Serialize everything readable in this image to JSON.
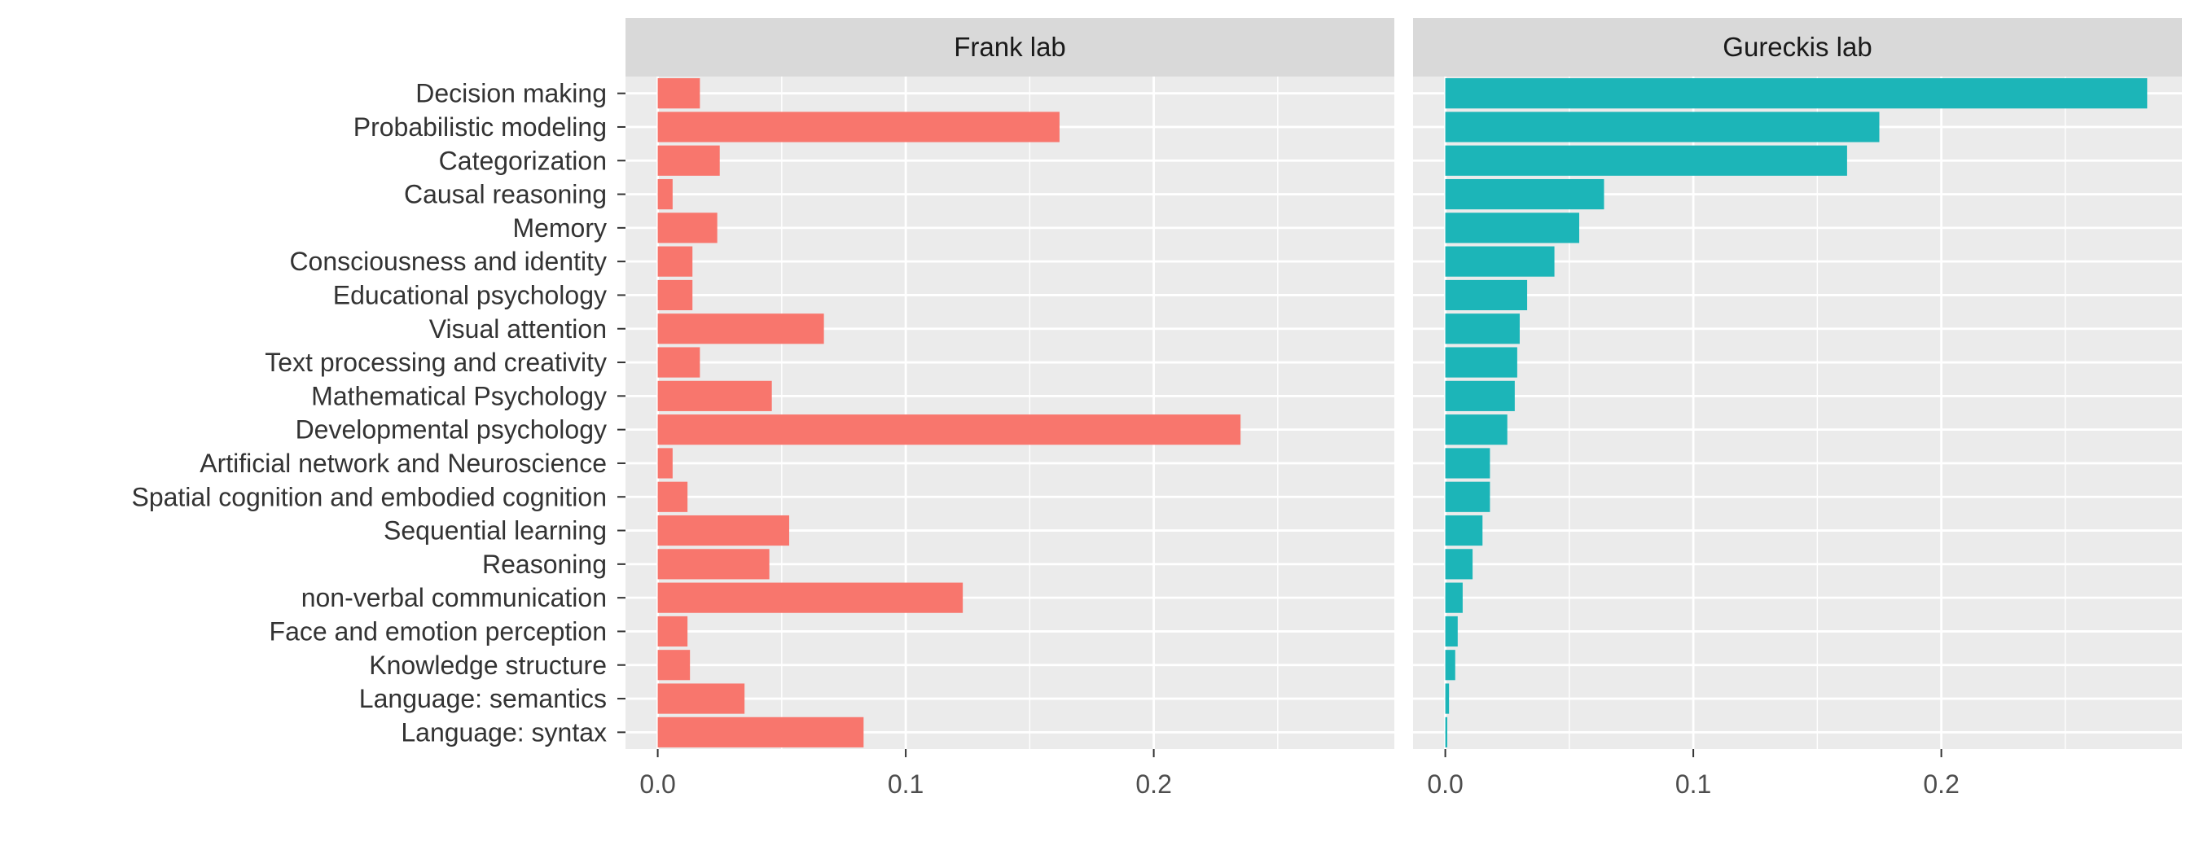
{
  "chart_data": {
    "type": "bar",
    "orientation": "horizontal",
    "faceted": true,
    "categories": [
      "Decision making",
      "Probabilistic modeling",
      "Categorization",
      "Causal reasoning",
      "Memory",
      "Consciousness and identity",
      "Educational psychology",
      "Visual attention",
      "Text processing and creativity",
      "Mathematical Psychology",
      "Developmental psychology",
      "Artificial network and Neuroscience",
      "Spatial cognition and embodied cognition",
      "Sequential learning",
      "Reasoning",
      "non-verbal communication",
      "Face and emotion perception",
      "Knowledge structure",
      "Language: semantics",
      "Language: syntax"
    ],
    "x_ticks": [
      "0.0",
      "0.1",
      "0.2"
    ],
    "xlim": [
      -0.013,
      0.297
    ],
    "grid": true,
    "legend": "none",
    "panels": [
      {
        "name": "Frank lab",
        "color": "#F8766D",
        "values": [
          0.017,
          0.162,
          0.025,
          0.006,
          0.024,
          0.014,
          0.014,
          0.067,
          0.017,
          0.046,
          0.235,
          0.006,
          0.012,
          0.053,
          0.045,
          0.123,
          0.012,
          0.013,
          0.035,
          0.083
        ]
      },
      {
        "name": "Gureckis lab",
        "color": "#1CB5B8",
        "values": [
          0.283,
          0.175,
          0.162,
          0.064,
          0.054,
          0.044,
          0.033,
          0.03,
          0.029,
          0.028,
          0.025,
          0.018,
          0.018,
          0.015,
          0.011,
          0.007,
          0.005,
          0.004,
          0.0015,
          0.0008
        ]
      }
    ]
  }
}
